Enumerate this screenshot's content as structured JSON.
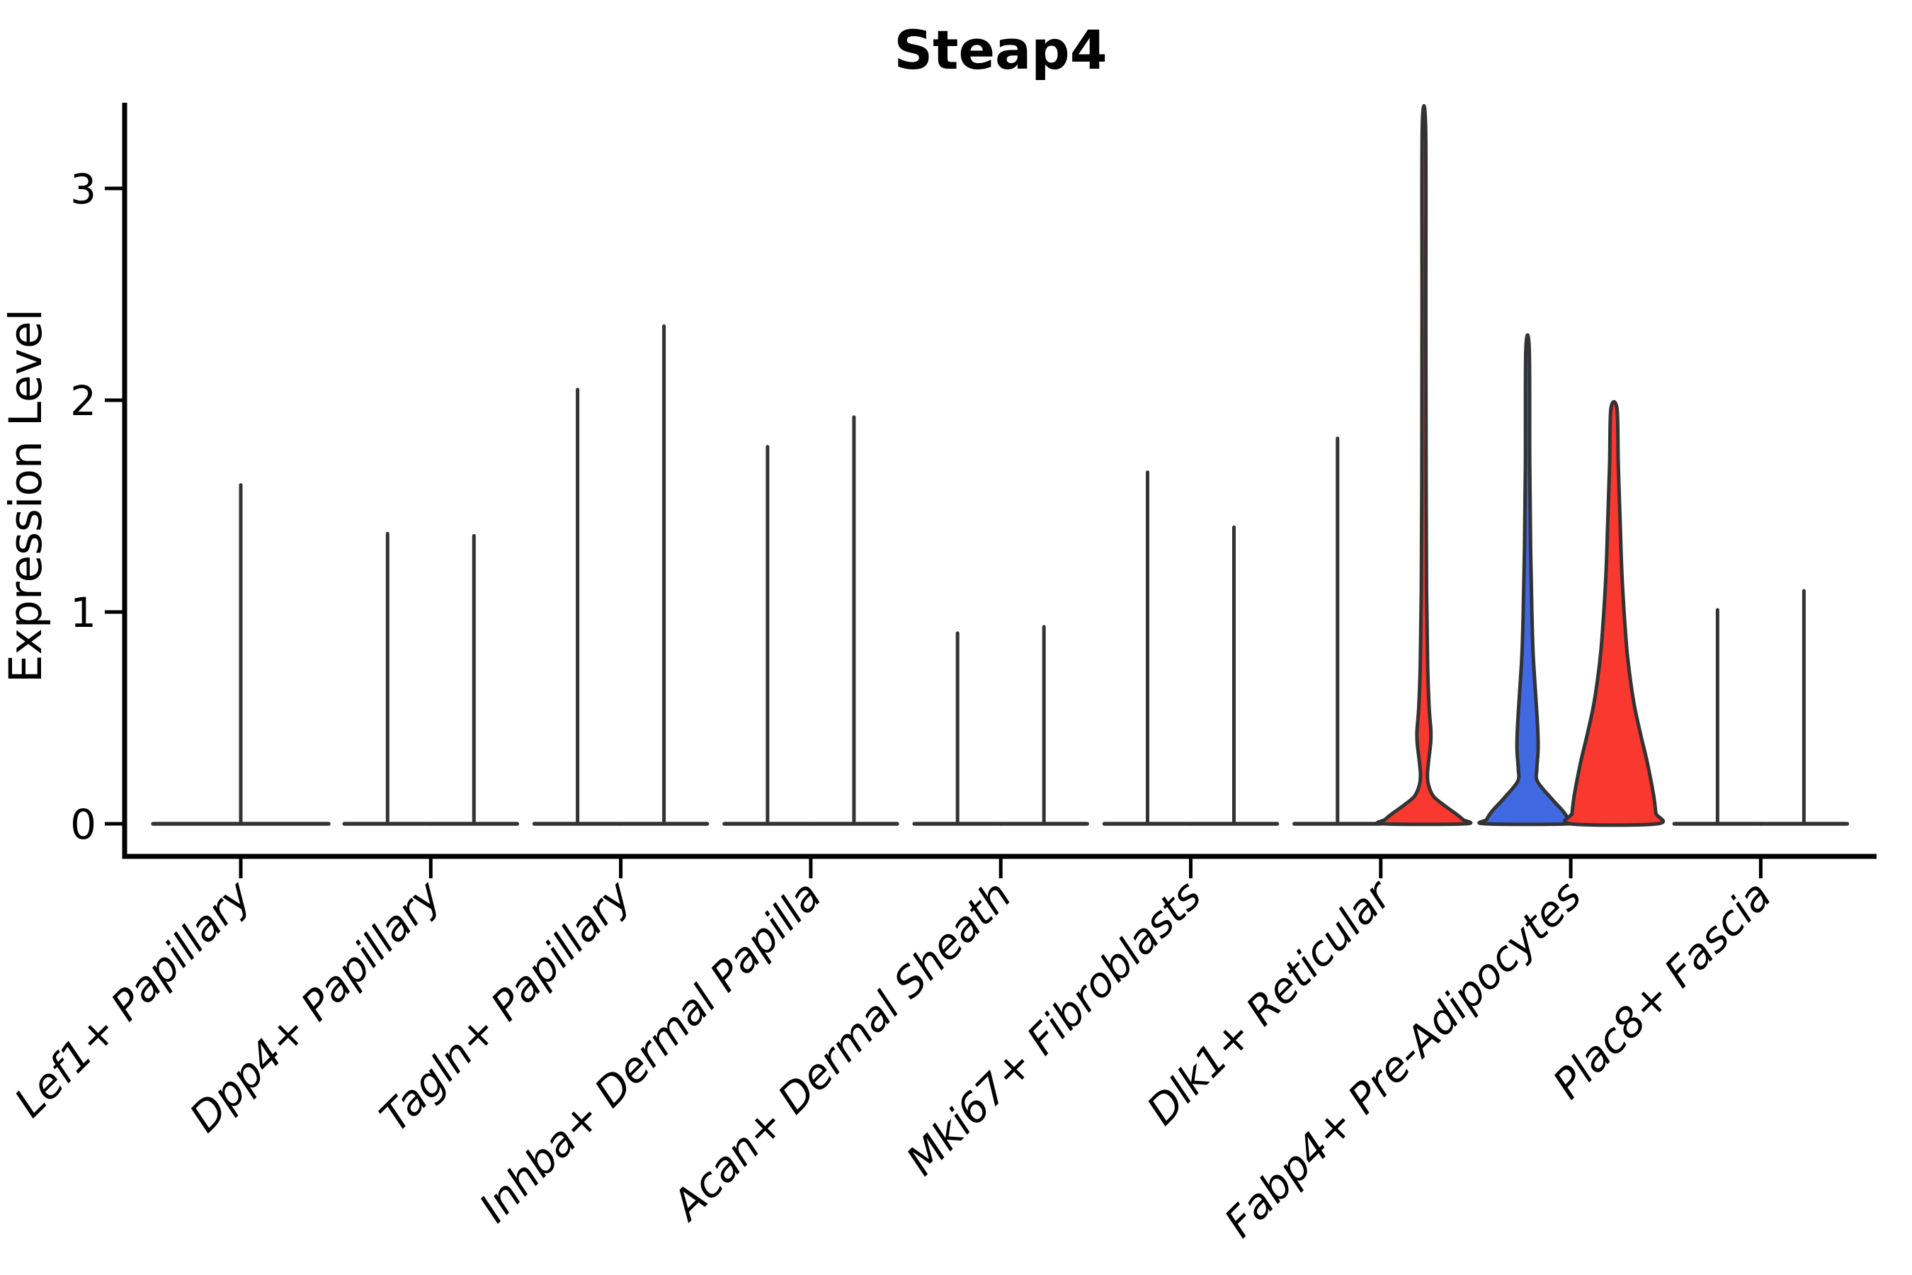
{
  "chart_data": {
    "type": "violin",
    "title": "Steap4",
    "ylabel": "Expression Level",
    "xlabel": "",
    "yticks": [
      0,
      1,
      2,
      3
    ],
    "ylim": [
      -0.15,
      3.45
    ],
    "grid": false,
    "legend_position": "none",
    "x_label_rotation_deg": 45,
    "x_label_style": "italic",
    "categories": [
      "Lef1+ Papillary",
      "Dpp4+ Papillary",
      "Tagln+ Papillary",
      "Inhba+ Dermal Papilla",
      "Acan+ Dermal Sheath",
      "Mki67+ Fibroblasts",
      "Dlk1+ Reticular",
      "Fabp4+ Pre-Adipocytes",
      "Plac8+ Fascia"
    ],
    "colors": {
      "red": "#F93830",
      "blue": "#4169E1",
      "violin_outline": "#333333",
      "axis": "#000000",
      "background": "#ffffff"
    },
    "groups": [
      {
        "category": "Lef1+ Papillary",
        "violins": [
          {
            "position": "center",
            "fill": "none",
            "shape": "spike",
            "max_expression": 1.6,
            "width": "double"
          }
        ]
      },
      {
        "category": "Dpp4+ Papillary",
        "violins": [
          {
            "position": "left",
            "fill": "none",
            "shape": "spike",
            "max_expression": 1.37
          },
          {
            "position": "right",
            "fill": "none",
            "shape": "spike",
            "max_expression": 1.36
          }
        ]
      },
      {
        "category": "Tagln+ Papillary",
        "violins": [
          {
            "position": "left",
            "fill": "none",
            "shape": "spike",
            "max_expression": 2.05
          },
          {
            "position": "right",
            "fill": "none",
            "shape": "spike",
            "max_expression": 2.35
          }
        ]
      },
      {
        "category": "Inhba+ Dermal Papilla",
        "violins": [
          {
            "position": "left",
            "fill": "none",
            "shape": "spike",
            "max_expression": 1.78
          },
          {
            "position": "right",
            "fill": "none",
            "shape": "spike",
            "max_expression": 1.92
          }
        ]
      },
      {
        "category": "Acan+ Dermal Sheath",
        "violins": [
          {
            "position": "left",
            "fill": "none",
            "shape": "spike",
            "max_expression": 0.9
          },
          {
            "position": "right",
            "fill": "none",
            "shape": "spike",
            "max_expression": 0.93
          }
        ]
      },
      {
        "category": "Mki67+ Fibroblasts",
        "violins": [
          {
            "position": "left",
            "fill": "none",
            "shape": "spike",
            "max_expression": 1.66
          },
          {
            "position": "right",
            "fill": "none",
            "shape": "spike",
            "max_expression": 1.4
          }
        ]
      },
      {
        "category": "Dlk1+ Reticular",
        "violins": [
          {
            "position": "left",
            "fill": "none",
            "shape": "spike",
            "max_expression": 1.82
          },
          {
            "position": "right",
            "fill": "red",
            "shape": "profile",
            "max_expression": 3.28,
            "density_profile": [
              [
                0,
                0.95
              ],
              [
                0.02,
                0.9
              ],
              [
                0.05,
                0.72
              ],
              [
                0.09,
                0.45
              ],
              [
                0.13,
                0.22
              ],
              [
                0.18,
                0.11
              ],
              [
                0.23,
                0.08
              ],
              [
                0.3,
                0.11
              ],
              [
                0.38,
                0.155
              ],
              [
                0.44,
                0.16
              ],
              [
                0.55,
                0.12
              ],
              [
                0.75,
                0.085
              ],
              [
                1.1,
                0.06
              ],
              [
                1.6,
                0.05
              ],
              [
                2.4,
                0.045
              ],
              [
                3.28,
                0.04
              ]
            ]
          }
        ]
      },
      {
        "category": "Fabp4+ Pre-Adipocytes",
        "violins": [
          {
            "position": "left",
            "fill": "blue",
            "shape": "profile",
            "max_expression": 2.24,
            "density_profile": [
              [
                0,
                0.98
              ],
              [
                0.02,
                0.95
              ],
              [
                0.06,
                0.82
              ],
              [
                0.12,
                0.55
              ],
              [
                0.2,
                0.23
              ],
              [
                0.26,
                0.215
              ],
              [
                0.35,
                0.245
              ],
              [
                0.45,
                0.235
              ],
              [
                0.6,
                0.19
              ],
              [
                0.8,
                0.13
              ],
              [
                1.0,
                0.1
              ],
              [
                1.3,
                0.07
              ],
              [
                1.7,
                0.05
              ],
              [
                2.24,
                0.04
              ]
            ]
          },
          {
            "position": "right",
            "fill": "red",
            "shape": "profile",
            "max_expression": 1.96,
            "density_profile": [
              [
                0,
                1.0
              ],
              [
                0.05,
                0.97
              ],
              [
                0.12,
                0.93
              ],
              [
                0.2,
                0.86
              ],
              [
                0.3,
                0.76
              ],
              [
                0.42,
                0.62
              ],
              [
                0.55,
                0.48
              ],
              [
                0.68,
                0.38
              ],
              [
                0.82,
                0.3
              ],
              [
                1.0,
                0.235
              ],
              [
                1.2,
                0.18
              ],
              [
                1.45,
                0.14
              ],
              [
                1.7,
                0.1
              ],
              [
                1.96,
                0.07
              ]
            ]
          }
        ]
      },
      {
        "category": "Plac8+ Fascia",
        "violins": [
          {
            "position": "left",
            "fill": "none",
            "shape": "spike",
            "max_expression": 1.01
          },
          {
            "position": "right",
            "fill": "none",
            "shape": "spike",
            "max_expression": 1.1
          }
        ]
      }
    ]
  }
}
